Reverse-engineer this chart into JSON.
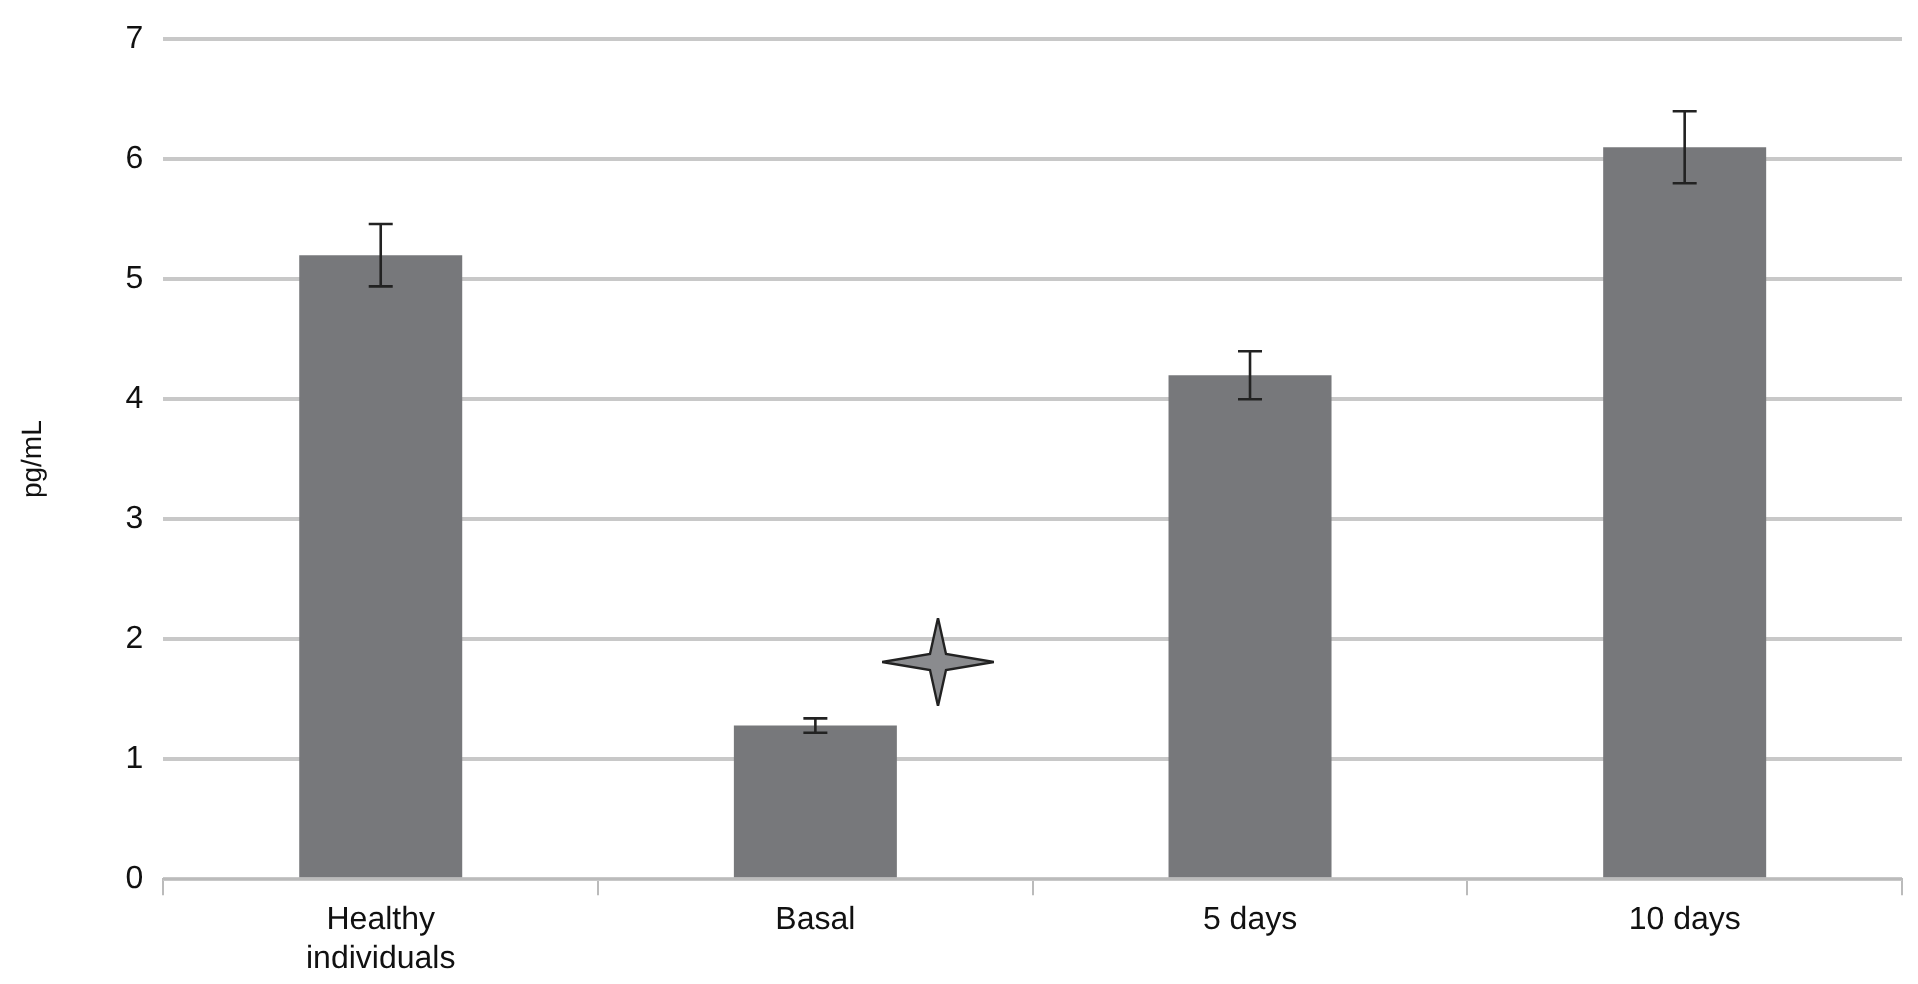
{
  "chart_data": {
    "type": "bar",
    "ylabel": "pg/mL",
    "categories": [
      "Healthy individuals",
      "Basal",
      "5 days",
      "10 days"
    ],
    "values": [
      5.2,
      1.28,
      4.2,
      6.1
    ],
    "errors": [
      0.26,
      0.06,
      0.2,
      0.3
    ],
    "color": "#77787b",
    "ylim": [
      0,
      7
    ],
    "yticks": [
      0,
      1,
      2,
      3,
      4,
      5,
      6,
      7
    ],
    "grid": "y"
  }
}
